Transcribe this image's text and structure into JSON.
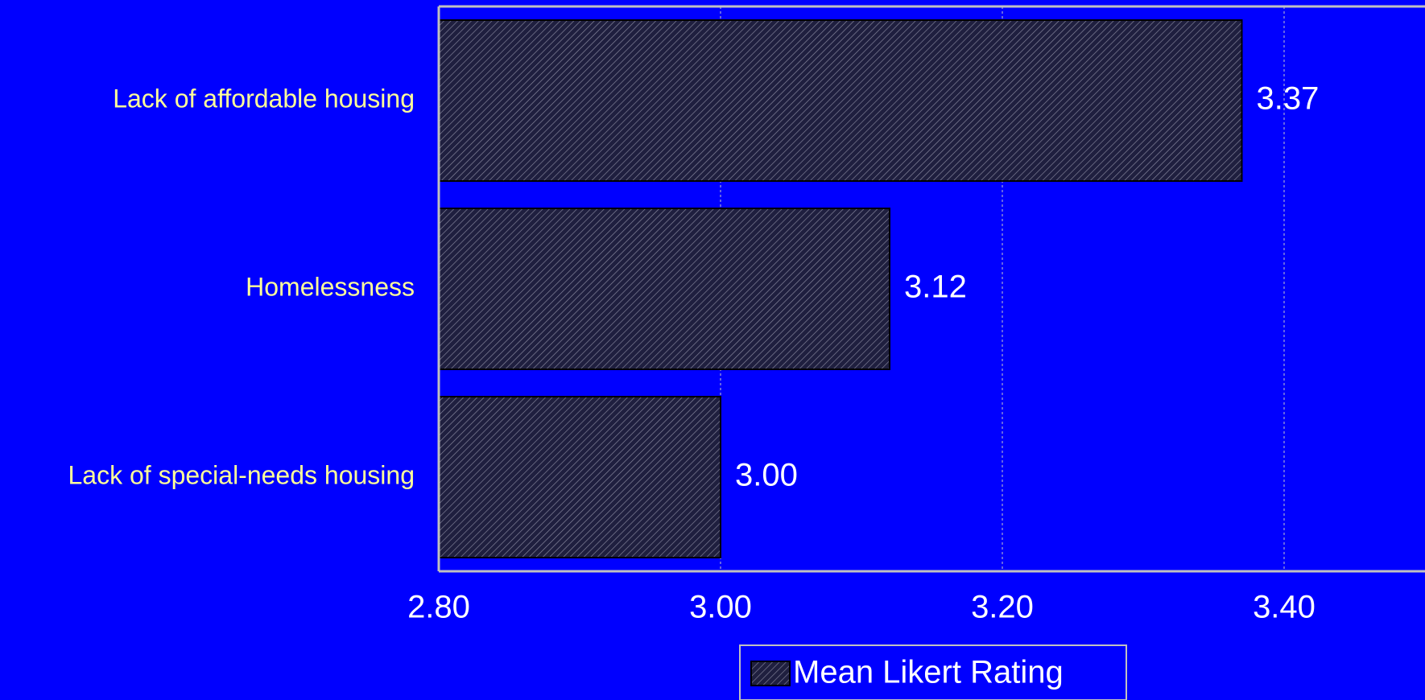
{
  "colors": {
    "background": "#0000FF",
    "bar_fill": "#1F1F3F",
    "bar_hatch": "#8A8AA0",
    "category_label": "#FFFF99",
    "value_text": "#FFFFFF",
    "axis_line": "#C0C0C0",
    "gridline": "#C8C8C8"
  },
  "chart_data": {
    "type": "bar",
    "orientation": "horizontal",
    "categories": [
      "Lack of affordable housing",
      "Homelessness",
      "Lack of special-needs housing"
    ],
    "series": [
      {
        "name": "Mean Likert Rating",
        "values": [
          3.37,
          3.12,
          3.0
        ],
        "data_labels": [
          "3.37",
          "3.12",
          "3.00"
        ]
      }
    ],
    "xlim": [
      2.8,
      3.5
    ],
    "x_ticks": [
      2.8,
      3.0,
      3.2,
      3.4
    ],
    "x_tick_labels": [
      "2.80",
      "3.00",
      "3.20",
      "3.40"
    ],
    "grid": "vertical dotted",
    "legend": {
      "position": "bottom-center",
      "label": "Mean Likert Rating"
    }
  }
}
